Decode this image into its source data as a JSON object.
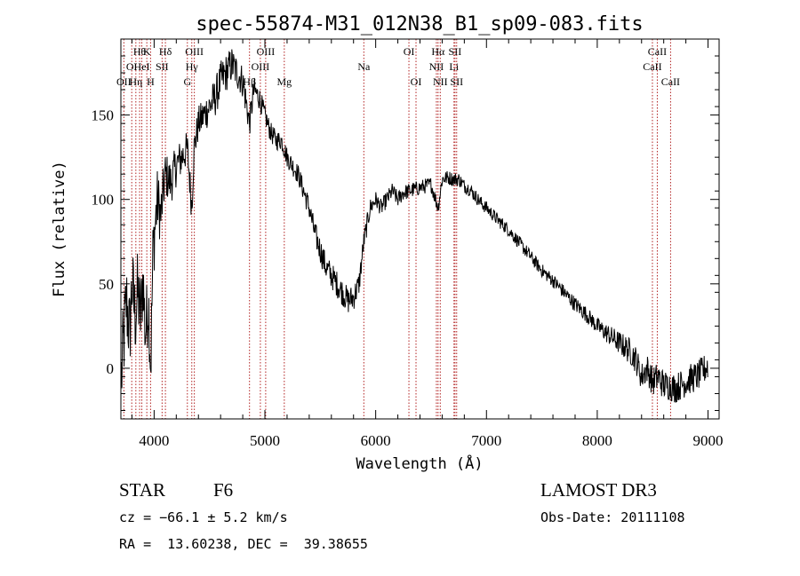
{
  "chart_data": {
    "type": "line",
    "title": "spec-55874-M31_012N38_B1_sp09-083.fits",
    "xlabel": "Wavelength (Å)",
    "ylabel": "Flux (relative)",
    "xlim": [
      3700,
      9100
    ],
    "ylim": [
      -30,
      195
    ],
    "xticks": [
      4000,
      5000,
      6000,
      7000,
      8000,
      9000
    ],
    "yticks": [
      0,
      50,
      100,
      150
    ],
    "grid": false,
    "spectrum_anchors": [
      [
        3700,
        -10
      ],
      [
        3720,
        10
      ],
      [
        3750,
        40
      ],
      [
        3780,
        20
      ],
      [
        3800,
        50
      ],
      [
        3830,
        30
      ],
      [
        3850,
        45
      ],
      [
        3880,
        30
      ],
      [
        3900,
        55
      ],
      [
        3920,
        20
      ],
      [
        3950,
        40
      ],
      [
        3970,
        0
      ],
      [
        3990,
        70
      ],
      [
        4010,
        85
      ],
      [
        4030,
        100
      ],
      [
        4060,
        90
      ],
      [
        4100,
        115
      ],
      [
        4150,
        110
      ],
      [
        4200,
        120
      ],
      [
        4250,
        125
      ],
      [
        4300,
        130
      ],
      [
        4340,
        95
      ],
      [
        4360,
        130
      ],
      [
        4400,
        145
      ],
      [
        4450,
        150
      ],
      [
        4500,
        155
      ],
      [
        4550,
        160
      ],
      [
        4600,
        170
      ],
      [
        4650,
        175
      ],
      [
        4700,
        180
      ],
      [
        4750,
        175
      ],
      [
        4800,
        170
      ],
      [
        4861,
        145
      ],
      [
        4900,
        165
      ],
      [
        4950,
        160
      ],
      [
        5000,
        150
      ],
      [
        5050,
        140
      ],
      [
        5100,
        135
      ],
      [
        5150,
        135
      ],
      [
        5200,
        125
      ],
      [
        5250,
        120
      ],
      [
        5300,
        115
      ],
      [
        5350,
        105
      ],
      [
        5400,
        95
      ],
      [
        5450,
        80
      ],
      [
        5500,
        70
      ],
      [
        5550,
        60
      ],
      [
        5600,
        55
      ],
      [
        5650,
        50
      ],
      [
        5700,
        45
      ],
      [
        5750,
        40
      ],
      [
        5800,
        42
      ],
      [
        5850,
        50
      ],
      [
        5893,
        75
      ],
      [
        5950,
        95
      ],
      [
        6000,
        100
      ],
      [
        6050,
        95
      ],
      [
        6100,
        100
      ],
      [
        6150,
        105
      ],
      [
        6200,
        100
      ],
      [
        6250,
        104
      ],
      [
        6300,
        105
      ],
      [
        6350,
        106
      ],
      [
        6400,
        107
      ],
      [
        6450,
        108
      ],
      [
        6500,
        109
      ],
      [
        6563,
        95
      ],
      [
        6600,
        112
      ],
      [
        6650,
        113
      ],
      [
        6700,
        112
      ],
      [
        6750,
        112
      ],
      [
        6800,
        108
      ],
      [
        6850,
        106
      ],
      [
        6900,
        102
      ],
      [
        6950,
        98
      ],
      [
        7000,
        95
      ],
      [
        7100,
        88
      ],
      [
        7200,
        82
      ],
      [
        7300,
        74
      ],
      [
        7400,
        66
      ],
      [
        7500,
        58
      ],
      [
        7600,
        52
      ],
      [
        7700,
        45
      ],
      [
        7800,
        38
      ],
      [
        7900,
        32
      ],
      [
        8000,
        25
      ],
      [
        8100,
        20
      ],
      [
        8200,
        15
      ],
      [
        8300,
        10
      ],
      [
        8350,
        5
      ],
      [
        8400,
        -5
      ],
      [
        8450,
        0
      ],
      [
        8500,
        -8
      ],
      [
        8550,
        -5
      ],
      [
        8600,
        -10
      ],
      [
        8650,
        -10
      ],
      [
        8700,
        -12
      ],
      [
        8750,
        -10
      ],
      [
        8800,
        -8
      ],
      [
        8850,
        -6
      ],
      [
        8900,
        -5
      ],
      [
        8950,
        -2
      ],
      [
        9000,
        2
      ]
    ],
    "noise_amplitude": [
      [
        3700,
        28
      ],
      [
        3990,
        22
      ],
      [
        4100,
        14
      ],
      [
        4350,
        10
      ],
      [
        4600,
        12
      ],
      [
        4800,
        10
      ],
      [
        5000,
        6
      ],
      [
        5300,
        6
      ],
      [
        5500,
        8
      ],
      [
        5800,
        8
      ],
      [
        6000,
        5
      ],
      [
        7000,
        4
      ],
      [
        7500,
        4
      ],
      [
        8000,
        5
      ],
      [
        8300,
        8
      ],
      [
        8500,
        9
      ],
      [
        9000,
        9
      ]
    ],
    "lines": [
      {
        "wave": 3727,
        "labels": [
          "OII"
        ],
        "tier": 3
      },
      {
        "wave": 3798,
        "labels": [
          "OI"
        ],
        "tier": 2
      },
      {
        "wave": 3835,
        "labels": [
          "Hη"
        ],
        "tier": 3
      },
      {
        "wave": 3869,
        "labels": [
          "Hθ"
        ],
        "tier": 1
      },
      {
        "wave": 3889,
        "labels": [
          "HeI"
        ],
        "tier": 2
      },
      {
        "wave": 3934,
        "labels": [
          "K"
        ],
        "tier": 1
      },
      {
        "wave": 3968,
        "labels": [
          "H"
        ],
        "tier": 3
      },
      {
        "wave": 4072,
        "labels": [
          "SII"
        ],
        "tier": 2
      },
      {
        "wave": 4102,
        "labels": [
          "Hδ"
        ],
        "tier": 1
      },
      {
        "wave": 4300,
        "labels": [
          "G"
        ],
        "tier": 3
      },
      {
        "wave": 4340,
        "labels": [
          "Hγ"
        ],
        "tier": 2
      },
      {
        "wave": 4363,
        "labels": [
          "OIII"
        ],
        "tier": 1
      },
      {
        "wave": 4861,
        "labels": [
          "Hβ"
        ],
        "tier": 3
      },
      {
        "wave": 4959,
        "labels": [
          "OIII"
        ],
        "tier": 2
      },
      {
        "wave": 5007,
        "labels": [
          "OIII"
        ],
        "tier": 1
      },
      {
        "wave": 5175,
        "labels": [
          "Mg"
        ],
        "tier": 3
      },
      {
        "wave": 5893,
        "labels": [
          "Na"
        ],
        "tier": 2
      },
      {
        "wave": 6300,
        "labels": [
          "OI"
        ],
        "tier": 1
      },
      {
        "wave": 6364,
        "labels": [
          "OI"
        ],
        "tier": 3
      },
      {
        "wave": 6548,
        "labels": [
          "NII"
        ],
        "tier": 2
      },
      {
        "wave": 6563,
        "labels": [
          "Hα"
        ],
        "tier": 1
      },
      {
        "wave": 6583,
        "labels": [
          "NII"
        ],
        "tier": 3
      },
      {
        "wave": 6707,
        "labels": [
          "Li"
        ],
        "tier": 2
      },
      {
        "wave": 6716,
        "labels": [
          "SII"
        ],
        "tier": 1
      },
      {
        "wave": 6731,
        "labels": [
          "SII"
        ],
        "tier": 3
      },
      {
        "wave": 8498,
        "labels": [
          "CaII"
        ],
        "tier": 2
      },
      {
        "wave": 8542,
        "labels": [
          "CaII"
        ],
        "tier": 1
      },
      {
        "wave": 8662,
        "labels": [
          "CaII"
        ],
        "tier": 3
      }
    ],
    "colors": {
      "spectrum": "#000000",
      "line_markers": "#b22222",
      "axes": "#000000"
    }
  },
  "info": {
    "class": "STAR",
    "subclass": "F6",
    "survey": "LAMOST DR3",
    "cz": "cz = −66.1 ± 5.2 km/s",
    "obs_date": "Obs-Date: 20111108",
    "coords": "RA =  13.60238, DEC =  39.38655"
  }
}
